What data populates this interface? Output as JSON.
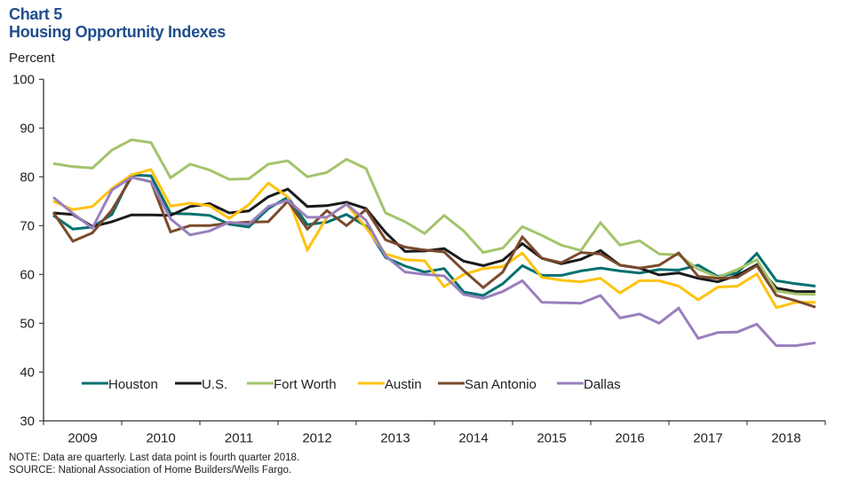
{
  "header": {
    "chart_number": "Chart 5",
    "title": "Housing Opportunity Indexes"
  },
  "footer": {
    "note": "NOTE: Data are quarterly. Last data point is fourth quarter 2018.",
    "source": "SOURCE: National Association of Home Builders/Wells Fargo."
  },
  "chart_data": {
    "type": "line",
    "title": "Housing Opportunity Indexes",
    "xlabel": "",
    "ylabel": "Percent",
    "ylim": [
      30,
      100
    ],
    "yticks": [
      30,
      40,
      50,
      60,
      70,
      80,
      90,
      100
    ],
    "categories": [
      "2009",
      "2010",
      "2011",
      "2012",
      "2013",
      "2014",
      "2015",
      "2016",
      "2017",
      "2018"
    ],
    "frequency": "quarterly",
    "x": [
      "2009Q1",
      "2009Q2",
      "2009Q3",
      "2009Q4",
      "2010Q1",
      "2010Q2",
      "2010Q3",
      "2010Q4",
      "2011Q1",
      "2011Q2",
      "2011Q3",
      "2011Q4",
      "2012Q1",
      "2012Q2",
      "2012Q3",
      "2012Q4",
      "2013Q1",
      "2013Q2",
      "2013Q3",
      "2013Q4",
      "2014Q1",
      "2014Q2",
      "2014Q3",
      "2014Q4",
      "2015Q1",
      "2015Q2",
      "2015Q3",
      "2015Q4",
      "2016Q1",
      "2016Q2",
      "2016Q3",
      "2016Q4",
      "2017Q1",
      "2017Q2",
      "2017Q3",
      "2017Q4",
      "2018Q1",
      "2018Q2",
      "2018Q3",
      "2018Q4"
    ],
    "grid": false,
    "legend": "bottom-inside",
    "series": [
      {
        "name": "Houston",
        "color": "#00706f",
        "values": [
          72.1,
          69.3,
          69.7,
          72.3,
          80.4,
          80.2,
          72.5,
          72.4,
          72.1,
          70.3,
          69.7,
          73.5,
          75.8,
          70.2,
          70.7,
          72.3,
          69.9,
          63.5,
          61.7,
          60.5,
          61.2,
          56.4,
          55.7,
          58.1,
          61.8,
          59.8,
          59.8,
          60.7,
          61.3,
          60.7,
          60.3,
          61.0,
          60.9,
          61.9,
          59.6,
          60.3,
          64.3,
          58.7,
          58.1,
          57.6
        ]
      },
      {
        "name": "U.S.",
        "color": "#1a1a1a",
        "values": [
          72.6,
          72.3,
          69.8,
          70.8,
          72.2,
          72.2,
          72.1,
          73.9,
          74.5,
          72.6,
          73.0,
          75.9,
          77.5,
          73.9,
          74.1,
          74.8,
          73.5,
          68.6,
          64.7,
          64.8,
          65.3,
          62.7,
          61.8,
          62.9,
          66.3,
          63.3,
          62.2,
          63.1,
          64.9,
          61.9,
          61.3,
          59.9,
          60.3,
          59.2,
          58.5,
          59.8,
          62.0,
          57.2,
          56.5,
          56.5
        ]
      },
      {
        "name": "Fort Worth",
        "color": "#a3c46c",
        "values": [
          82.7,
          82.1,
          81.8,
          85.5,
          87.6,
          87.0,
          79.8,
          82.6,
          81.4,
          79.5,
          79.6,
          82.6,
          83.3,
          80.0,
          80.9,
          83.6,
          81.7,
          72.6,
          70.8,
          68.4,
          72.1,
          68.9,
          64.5,
          65.4,
          69.8,
          68.0,
          66.0,
          64.9,
          70.6,
          66.0,
          66.9,
          64.2,
          64.0,
          61.1,
          59.4,
          61.0,
          63.0,
          56.6,
          56.0,
          55.9
        ]
      },
      {
        "name": "Austin",
        "color": "#ffc20e",
        "values": [
          75.0,
          73.3,
          73.9,
          77.6,
          80.4,
          81.5,
          74.0,
          74.6,
          74.1,
          71.5,
          74.3,
          78.7,
          75.9,
          65.0,
          71.7,
          74.4,
          69.6,
          64.2,
          63.0,
          62.8,
          57.5,
          60.0,
          61.2,
          61.6,
          64.4,
          59.4,
          58.8,
          58.5,
          59.2,
          56.2,
          58.7,
          58.7,
          57.6,
          54.8,
          57.4,
          57.6,
          60.1,
          53.2,
          54.3,
          54.3
        ]
      },
      {
        "name": "San Antonio",
        "color": "#7b4a2d",
        "values": [
          72.7,
          66.8,
          68.5,
          73.2,
          79.9,
          79.0,
          68.7,
          70.0,
          70.0,
          70.5,
          70.7,
          70.8,
          75.0,
          69.3,
          73.1,
          70.0,
          73.3,
          67.1,
          65.6,
          65.0,
          64.6,
          60.8,
          57.3,
          60.5,
          67.7,
          63.3,
          62.4,
          64.5,
          64.2,
          61.9,
          61.3,
          61.9,
          64.4,
          59.6,
          59.2,
          59.4,
          61.8,
          55.7,
          54.6,
          53.3
        ]
      },
      {
        "name": "Dallas",
        "color": "#9a7fbe",
        "values": [
          75.8,
          72.5,
          69.5,
          77.3,
          79.9,
          79.0,
          71.4,
          68.1,
          68.9,
          70.7,
          70.3,
          73.9,
          75.2,
          71.7,
          71.7,
          74.4,
          71.1,
          63.8,
          60.5,
          60.0,
          59.7,
          55.9,
          55.1,
          56.5,
          58.7,
          54.3,
          54.2,
          54.1,
          55.7,
          51.1,
          51.9,
          50.0,
          53.1,
          46.9,
          48.1,
          48.2,
          49.8,
          45.4,
          45.4,
          46.0
        ]
      }
    ]
  }
}
